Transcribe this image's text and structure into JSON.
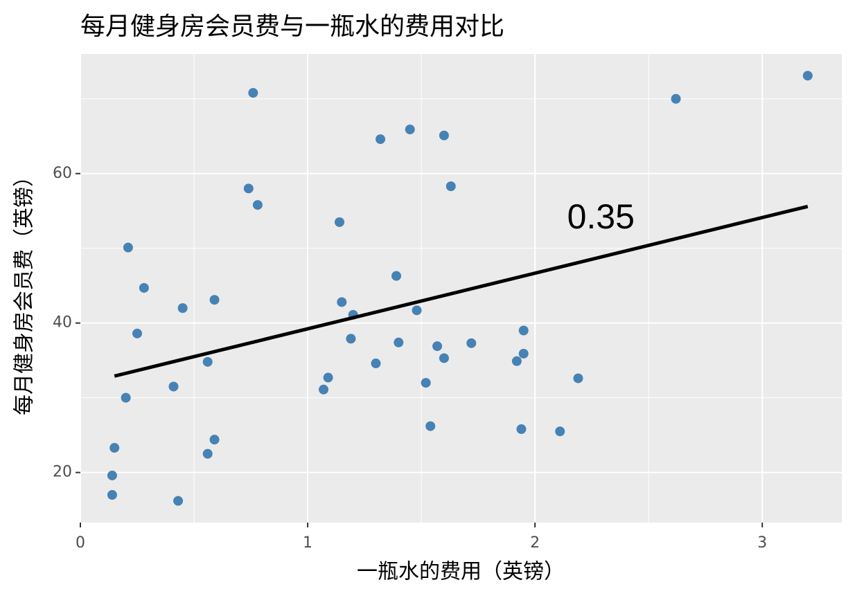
{
  "chart_data": {
    "type": "scatter",
    "title": "每月健身房会员费与一瓶水的费用对比",
    "x_label": "一瓶水的费用（英镑）",
    "y_label": "每月健身房会员费（英镑）",
    "color": "#4682b4",
    "x": [
      3.2,
      2.62,
      0.76,
      1.45,
      1.32,
      1.6,
      1.63,
      0.74,
      0.78,
      1.14,
      0.21,
      0.28,
      1.39,
      0.45,
      0.59,
      1.15,
      1.2,
      1.48,
      0.25,
      1.95,
      1.19,
      1.4,
      1.57,
      1.72,
      1.6,
      1.95,
      1.92,
      0.56,
      1.3,
      1.09,
      2.19,
      1.52,
      0.41,
      1.07,
      0.2,
      1.54,
      1.94,
      2.11,
      0.59,
      0.15,
      0.56,
      0.14,
      0.14,
      0.43
    ],
    "values": [
      73.1,
      70.0,
      70.8,
      65.9,
      64.6,
      65.1,
      58.3,
      58.0,
      55.8,
      53.5,
      50.1,
      44.7,
      46.3,
      42.0,
      43.1,
      42.8,
      41.1,
      41.7,
      38.6,
      39.0,
      37.9,
      37.4,
      36.9,
      37.3,
      35.3,
      35.9,
      34.9,
      34.8,
      34.6,
      32.7,
      32.6,
      32.0,
      31.5,
      31.1,
      30.0,
      26.2,
      25.8,
      25.5,
      24.4,
      23.3,
      22.5,
      19.6,
      17.0,
      16.2
    ],
    "fit_line": {
      "x": [
        0.15,
        3.2
      ],
      "values": [
        32.9,
        55.6
      ],
      "color": "#000000"
    },
    "annotation": {
      "text": "0.35",
      "x": 2.29,
      "y": 53.9
    },
    "xlim": [
      0,
      3.35
    ],
    "ylim": [
      13.3,
      76
    ],
    "xticks": [
      0,
      1,
      2,
      3
    ],
    "yticks": [
      20,
      40,
      60
    ],
    "grid": true
  }
}
